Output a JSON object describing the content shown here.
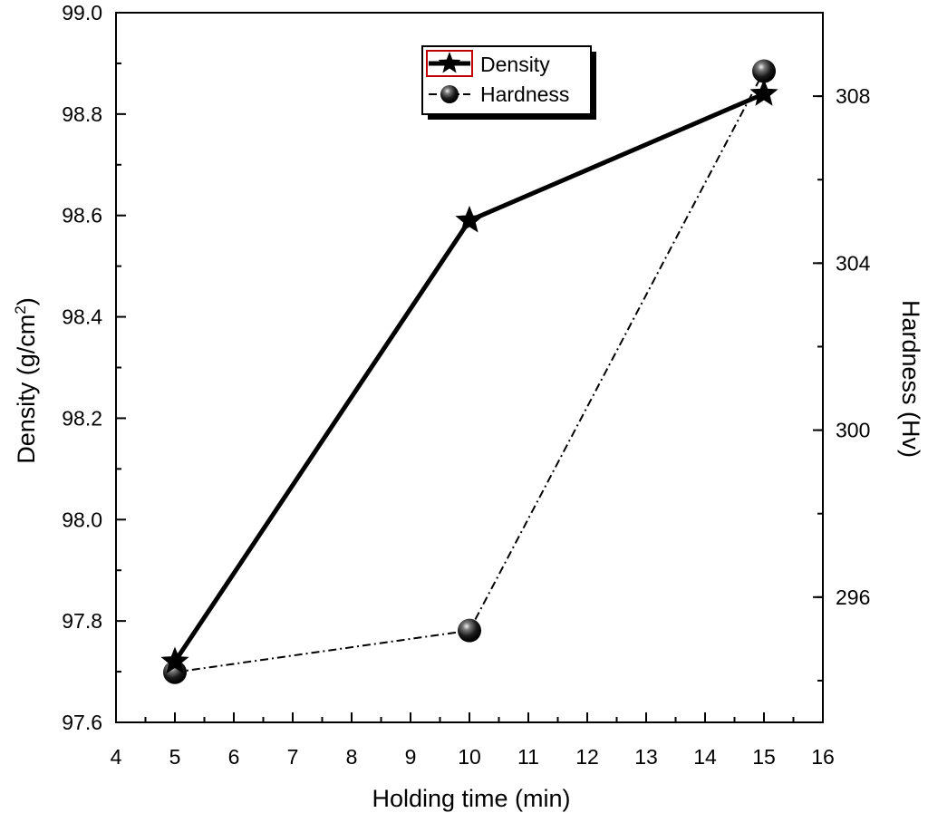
{
  "chart_data": {
    "type": "line",
    "x": [
      5,
      10,
      15
    ],
    "xlim": [
      4,
      16
    ],
    "xticks": [
      "4",
      "5",
      "6",
      "7",
      "8",
      "9",
      "10",
      "11",
      "12",
      "13",
      "14",
      "15",
      "16"
    ],
    "xlabel": "Holding time (min)",
    "y_left": {
      "label": "Density (g/cm",
      "label_sup": "2",
      "label_end": ")",
      "lim": [
        97.6,
        99.0
      ],
      "ticks": [
        "97.6",
        "97.8",
        "98.0",
        "98.2",
        "98.4",
        "98.6",
        "98.8",
        "99.0"
      ]
    },
    "y_right": {
      "label": "Hardness (Hv)",
      "lim": [
        293,
        310
      ],
      "ticks": [
        "296",
        "300",
        "304",
        "308"
      ]
    },
    "series": [
      {
        "name": "Density",
        "axis": "left",
        "marker": "star",
        "line": "solid",
        "values": [
          97.72,
          98.59,
          98.84
        ],
        "color": "#000000"
      },
      {
        "name": "Hardness",
        "axis": "right",
        "marker": "sphere",
        "line": "dash-dot",
        "values": [
          294.2,
          295.2,
          308.6
        ],
        "color": "#000000"
      }
    ],
    "legend": {
      "position": "top-right"
    },
    "grid": false
  }
}
